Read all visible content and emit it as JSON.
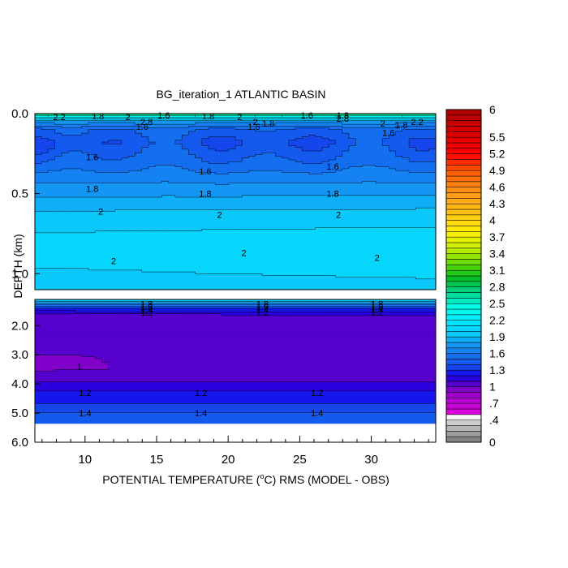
{
  "chart_data": {
    "type": "heatmap",
    "title": "BG_iteration_1 ATLANTIC BASIN",
    "xlabel_prefix": "POTENTIAL TEMPERATURE (",
    "xlabel_sup": "o",
    "xlabel_suffix": "C) RMS (MODEL - OBS)",
    "ylabel": "DEPTH (km)",
    "xlim": [
      6.5,
      34.5
    ],
    "x_ticks": [
      "10",
      "15",
      "20",
      "25",
      "30"
    ],
    "x_tick_values": [
      10,
      15,
      20,
      25,
      30
    ],
    "upper_panel": {
      "depth_range_km": [
        0.0,
        1.1
      ],
      "y_ticks": [
        "0.0",
        "0.5",
        "1.0"
      ],
      "y_tick_values": [
        0.0,
        0.5,
        1.0
      ]
    },
    "lower_panel": {
      "depth_range_km": [
        1.1,
        6.0
      ],
      "y_ticks": [
        "2.0",
        "3.0",
        "4.0",
        "5.0",
        "6.0"
      ],
      "y_tick_values": [
        2.0,
        3.0,
        4.0,
        5.0,
        6.0
      ],
      "data_bottom_km": 5.35
    },
    "colorbar": {
      "labels": [
        "6",
        "5.5",
        "5.2",
        "4.9",
        "4.6",
        "4.3",
        "4",
        "3.7",
        "3.4",
        "3.1",
        "2.8",
        "2.5",
        "2.2",
        "1.9",
        "1.6",
        "1.3",
        "1",
        ".7",
        ".4",
        "0"
      ],
      "label_values": [
        6,
        5.5,
        5.2,
        4.9,
        4.6,
        4.3,
        4,
        3.7,
        3.4,
        3.1,
        2.8,
        2.5,
        2.2,
        1.9,
        1.6,
        1.3,
        1,
        0.7,
        0.4,
        0
      ],
      "levels": [
        0,
        0.1,
        0.2,
        0.3,
        0.4,
        0.5,
        0.6,
        0.7,
        0.8,
        0.9,
        1.0,
        1.1,
        1.2,
        1.3,
        1.4,
        1.5,
        1.6,
        1.7,
        1.8,
        1.9,
        2.0,
        2.1,
        2.2,
        2.3,
        2.4,
        2.5,
        2.6,
        2.7,
        2.8,
        2.9,
        3.0,
        3.1,
        3.2,
        3.3,
        3.4,
        3.5,
        3.6,
        3.7,
        3.8,
        3.9,
        4.0,
        4.1,
        4.2,
        4.3,
        4.4,
        4.5,
        4.6,
        4.7,
        4.8,
        4.9,
        5.0,
        5.1,
        5.2,
        5.3,
        5.4,
        5.5,
        5.6,
        5.7,
        5.8,
        5.9,
        6.0
      ]
    },
    "upper_contour_labels": [
      {
        "x": 8.2,
        "d": 0.02,
        "text": "2.2"
      },
      {
        "x": 10.9,
        "d": 0.015,
        "text": "1.8"
      },
      {
        "x": 13.0,
        "d": 0.02,
        "text": "2"
      },
      {
        "x": 15.5,
        "d": 0.01,
        "text": "1.6"
      },
      {
        "x": 18.6,
        "d": 0.015,
        "text": "1.8"
      },
      {
        "x": 20.8,
        "d": 0.02,
        "text": "2"
      },
      {
        "x": 25.5,
        "d": 0.01,
        "text": "1.6"
      },
      {
        "x": 28.0,
        "d": 0.01,
        "text": "1.8"
      },
      {
        "x": 28.0,
        "d": 0.03,
        "text": "2.8"
      },
      {
        "x": 14.3,
        "d": 0.05,
        "text": "2.8"
      },
      {
        "x": 14.0,
        "d": 0.08,
        "text": "1.6"
      },
      {
        "x": 21.9,
        "d": 0.05,
        "text": "2"
      },
      {
        "x": 22.8,
        "d": 0.06,
        "text": "1.8"
      },
      {
        "x": 21.8,
        "d": 0.08,
        "text": "1.6"
      },
      {
        "x": 30.8,
        "d": 0.06,
        "text": "2"
      },
      {
        "x": 32.1,
        "d": 0.07,
        "text": "1.8"
      },
      {
        "x": 33.2,
        "d": 0.05,
        "text": "2.2"
      },
      {
        "x": 31.2,
        "d": 0.12,
        "text": "1.6"
      },
      {
        "x": 10.5,
        "d": 0.27,
        "text": "1.6"
      },
      {
        "x": 18.4,
        "d": 0.36,
        "text": "1.6"
      },
      {
        "x": 27.3,
        "d": 0.33,
        "text": "1.6"
      },
      {
        "x": 10.5,
        "d": 0.47,
        "text": "1.8"
      },
      {
        "x": 18.4,
        "d": 0.5,
        "text": "1.8"
      },
      {
        "x": 27.3,
        "d": 0.5,
        "text": "1.8"
      },
      {
        "x": 11.1,
        "d": 0.61,
        "text": "2"
      },
      {
        "x": 19.4,
        "d": 0.63,
        "text": "2"
      },
      {
        "x": 27.7,
        "d": 0.63,
        "text": "2"
      },
      {
        "x": 12.0,
        "d": 0.92,
        "text": "2"
      },
      {
        "x": 21.1,
        "d": 0.87,
        "text": "2"
      },
      {
        "x": 30.4,
        "d": 0.9,
        "text": "2"
      }
    ],
    "lower_contour_labels": [
      {
        "x": 14.3,
        "d": 1.25,
        "text": "1.8"
      },
      {
        "x": 14.3,
        "d": 1.35,
        "text": "1.6"
      },
      {
        "x": 14.3,
        "d": 1.45,
        "text": "1.4"
      },
      {
        "x": 14.3,
        "d": 1.55,
        "text": "1.2"
      },
      {
        "x": 22.4,
        "d": 1.25,
        "text": "1.8"
      },
      {
        "x": 22.4,
        "d": 1.35,
        "text": "1.6"
      },
      {
        "x": 22.4,
        "d": 1.45,
        "text": "1.4"
      },
      {
        "x": 22.4,
        "d": 1.55,
        "text": "1.2"
      },
      {
        "x": 30.4,
        "d": 1.25,
        "text": "1.8"
      },
      {
        "x": 30.4,
        "d": 1.35,
        "text": "1.6"
      },
      {
        "x": 30.4,
        "d": 1.45,
        "text": "1.4"
      },
      {
        "x": 30.4,
        "d": 1.55,
        "text": "1.2"
      },
      {
        "x": 9.6,
        "d": 3.4,
        "text": "1"
      },
      {
        "x": 10.0,
        "d": 4.3,
        "text": "1.2"
      },
      {
        "x": 18.1,
        "d": 4.3,
        "text": "1.2"
      },
      {
        "x": 26.2,
        "d": 4.3,
        "text": "1.2"
      },
      {
        "x": 10.0,
        "d": 5.0,
        "text": "1.4"
      },
      {
        "x": 18.1,
        "d": 5.0,
        "text": "1.4"
      },
      {
        "x": 26.2,
        "d": 5.0,
        "text": "1.4"
      }
    ]
  }
}
